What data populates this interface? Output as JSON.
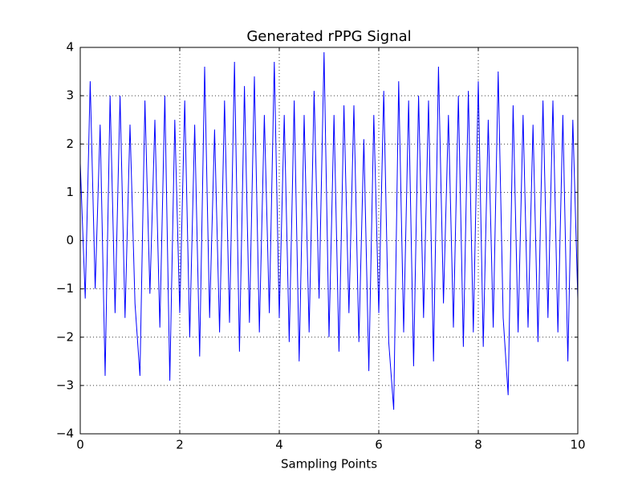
{
  "chart_data": {
    "type": "line",
    "title": "Generated rPPG Signal",
    "x_label": "Sampling Points",
    "x": [
      0.0,
      0.1,
      0.2,
      0.3,
      0.4,
      0.5,
      0.6,
      0.7,
      0.8,
      0.9,
      1.0,
      1.1,
      1.2,
      1.3,
      1.4,
      1.5,
      1.6,
      1.7,
      1.8,
      1.9,
      2.0,
      2.1,
      2.2,
      2.3,
      2.4,
      2.5,
      2.6,
      2.7,
      2.8,
      2.9,
      3.0,
      3.1,
      3.2,
      3.3,
      3.4,
      3.5,
      3.6,
      3.7,
      3.8,
      3.9,
      4.0,
      4.1,
      4.2,
      4.3,
      4.4,
      4.5,
      4.6,
      4.7,
      4.8,
      4.9,
      5.0,
      5.1,
      5.2,
      5.3,
      5.4,
      5.5,
      5.6,
      5.7,
      5.8,
      5.9,
      6.0,
      6.1,
      6.2,
      6.3,
      6.4,
      6.5,
      6.6,
      6.7,
      6.8,
      6.9,
      7.0,
      7.1,
      7.2,
      7.3,
      7.4,
      7.5,
      7.6,
      7.7,
      7.8,
      7.9,
      8.0,
      8.1,
      8.2,
      8.3,
      8.4,
      8.5,
      8.6,
      8.7,
      8.8,
      8.9,
      9.0,
      9.1,
      9.2,
      9.3,
      9.4,
      9.5,
      9.6,
      9.7,
      9.8,
      9.9,
      10.0
    ],
    "series": [
      {
        "color": "#0000ff",
        "values": [
          1.6,
          -1.2,
          3.3,
          -1.0,
          2.4,
          -2.8,
          3.0,
          -1.5,
          3.0,
          -1.6,
          2.4,
          -1.3,
          -2.8,
          2.9,
          -1.1,
          2.5,
          -1.8,
          3.0,
          -2.9,
          2.5,
          -1.5,
          2.9,
          -2.0,
          2.4,
          -2.4,
          3.6,
          -1.6,
          2.3,
          -1.9,
          2.9,
          -1.7,
          3.7,
          -2.3,
          3.2,
          -1.7,
          3.4,
          -1.9,
          2.6,
          -1.5,
          3.7,
          -1.6,
          2.6,
          -2.1,
          2.9,
          -2.5,
          2.6,
          -1.9,
          3.1,
          -1.2,
          3.9,
          -2.0,
          2.6,
          -2.3,
          2.8,
          -1.5,
          2.8,
          -2.1,
          2.1,
          -2.7,
          2.6,
          -1.5,
          3.1,
          -2.1,
          -3.5,
          3.3,
          -1.9,
          2.9,
          -2.6,
          3.0,
          -1.6,
          2.9,
          -2.5,
          3.6,
          -1.3,
          2.6,
          -1.8,
          3.0,
          -2.2,
          3.1,
          -1.9,
          3.3,
          -2.2,
          2.5,
          -1.8,
          3.5,
          -1.6,
          -3.2,
          2.8,
          -1.9,
          2.6,
          -1.8,
          2.4,
          -2.1,
          2.9,
          -1.6,
          2.9,
          -1.9,
          2.6,
          -2.5,
          2.5,
          -1.2
        ]
      }
    ],
    "xlim": [
      0,
      10
    ],
    "ylim": [
      -4,
      4
    ],
    "xticks": [
      0,
      2,
      4,
      6,
      8,
      10
    ],
    "yticks": [
      {
        "value": -4,
        "label": "−4"
      },
      {
        "value": -3,
        "label": "−3"
      },
      {
        "value": -2,
        "label": "−2"
      },
      {
        "value": -1,
        "label": "−1"
      },
      0,
      1,
      2,
      3,
      4
    ],
    "grid": true
  }
}
